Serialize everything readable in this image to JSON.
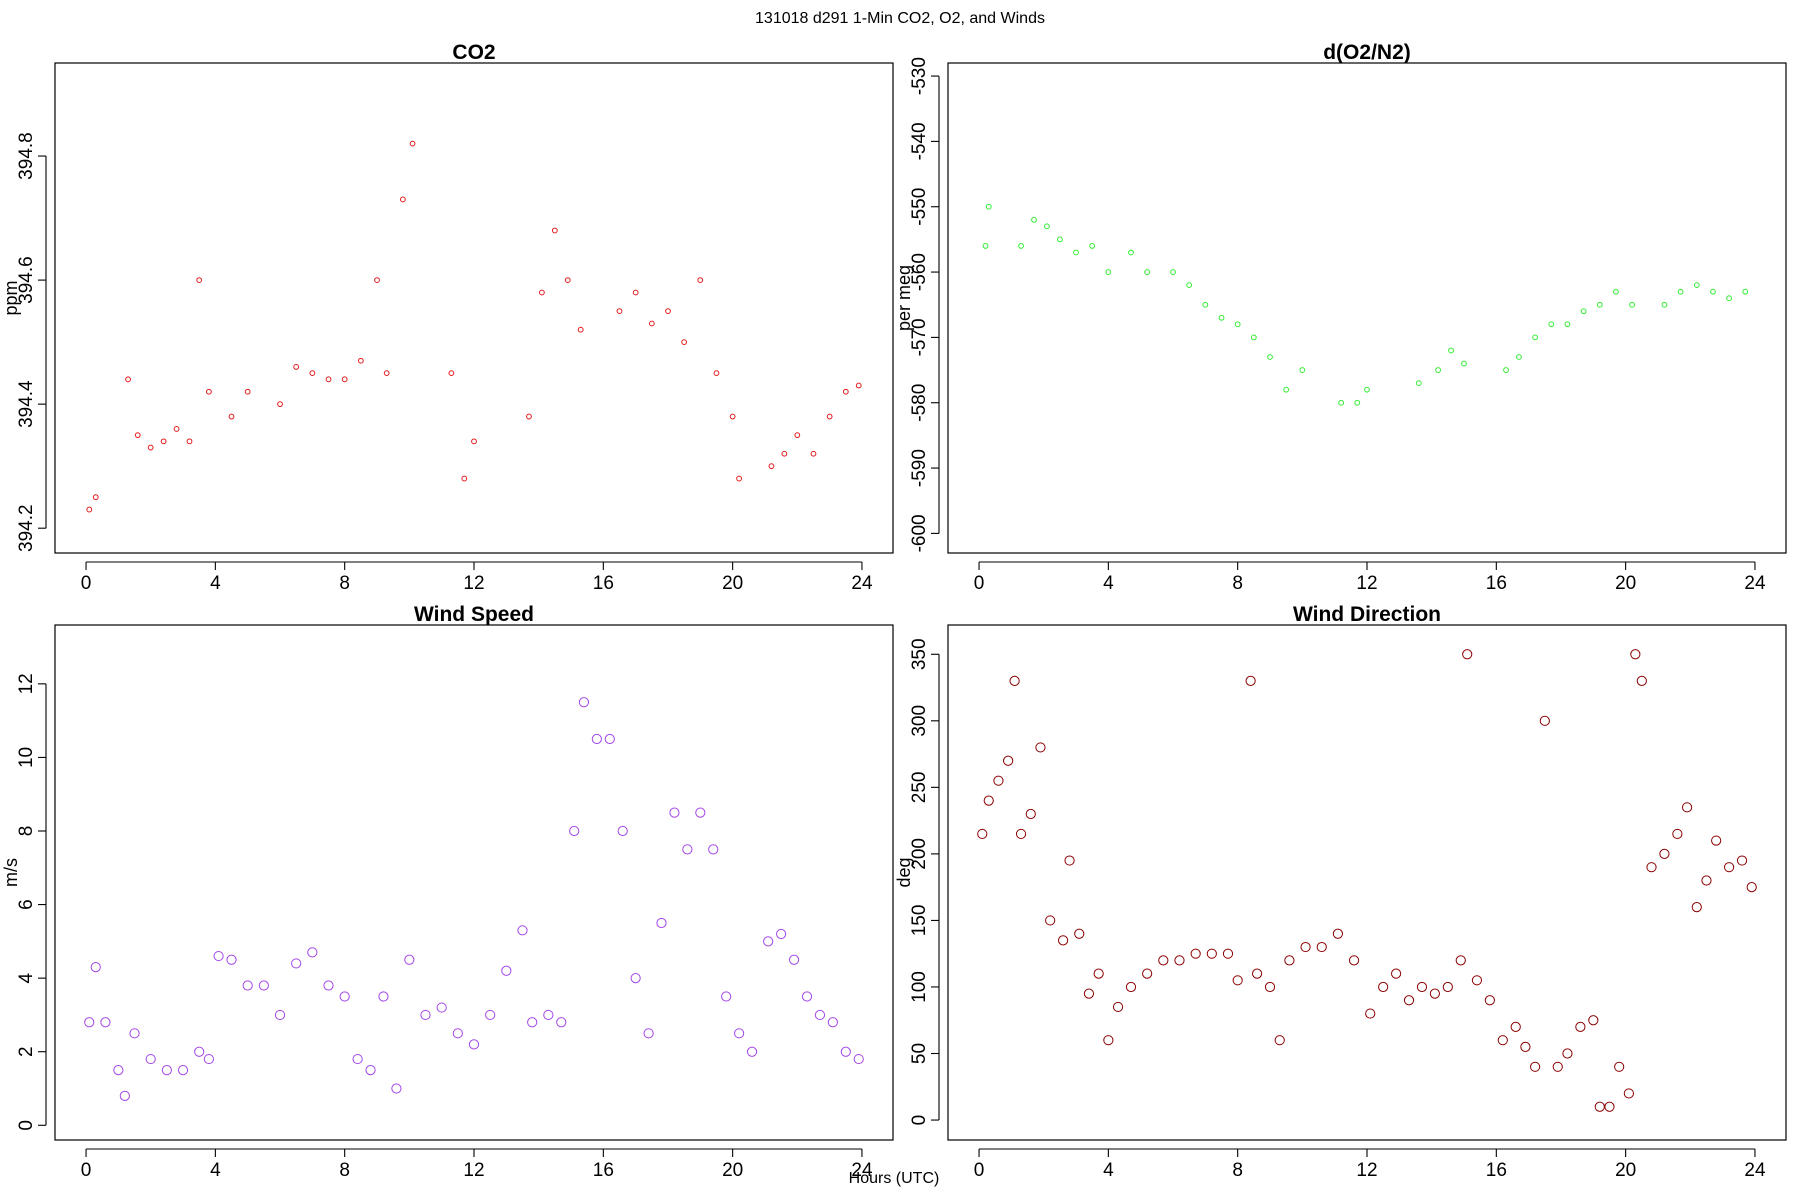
{
  "figure": {
    "title": "131018   d291   1-Min CO2, O2, and Winds",
    "xlabel": "Hours (UTC)"
  },
  "chart_data": [
    {
      "type": "scatter",
      "title": "CO2",
      "ylabel": "ppm",
      "xlim": [
        -0.96,
        24.96
      ],
      "ylim": [
        394.16,
        394.95
      ],
      "xticks": [
        0,
        4,
        8,
        12,
        16,
        20,
        24
      ],
      "yticks": [
        394.2,
        394.4,
        394.6,
        394.8
      ],
      "color": "#e41a1c",
      "points": [
        [
          0.1,
          394.23
        ],
        [
          0.3,
          394.25
        ],
        [
          1.3,
          394.44
        ],
        [
          1.6,
          394.35
        ],
        [
          2.0,
          394.33
        ],
        [
          2.4,
          394.34
        ],
        [
          2.8,
          394.36
        ],
        [
          3.2,
          394.34
        ],
        [
          3.5,
          394.6
        ],
        [
          3.8,
          394.42
        ],
        [
          4.5,
          394.38
        ],
        [
          5.0,
          394.42
        ],
        [
          6.0,
          394.4
        ],
        [
          6.5,
          394.46
        ],
        [
          7.0,
          394.45
        ],
        [
          7.5,
          394.44
        ],
        [
          8.0,
          394.44
        ],
        [
          8.5,
          394.47
        ],
        [
          9.0,
          394.6
        ],
        [
          9.3,
          394.45
        ],
        [
          9.8,
          394.73
        ],
        [
          10.1,
          394.82
        ],
        [
          11.3,
          394.45
        ],
        [
          11.7,
          394.28
        ],
        [
          12.0,
          394.34
        ],
        [
          13.7,
          394.38
        ],
        [
          14.1,
          394.58
        ],
        [
          14.5,
          394.68
        ],
        [
          14.9,
          394.6
        ],
        [
          15.3,
          394.52
        ],
        [
          16.5,
          394.55
        ],
        [
          17.0,
          394.58
        ],
        [
          17.5,
          394.53
        ],
        [
          18.0,
          394.55
        ],
        [
          18.5,
          394.5
        ],
        [
          19.0,
          394.6
        ],
        [
          19.5,
          394.45
        ],
        [
          20.0,
          394.38
        ],
        [
          20.2,
          394.28
        ],
        [
          21.2,
          394.3
        ],
        [
          21.6,
          394.32
        ],
        [
          22.0,
          394.35
        ],
        [
          22.5,
          394.32
        ],
        [
          23.0,
          394.38
        ],
        [
          23.5,
          394.42
        ],
        [
          23.9,
          394.43
        ]
      ]
    },
    {
      "type": "scatter",
      "title": "d(O2/N2)",
      "ylabel": "per meg",
      "xlim": [
        -0.96,
        24.96
      ],
      "ylim": [
        -603,
        -528
      ],
      "xticks": [
        0,
        4,
        8,
        12,
        16,
        20,
        24
      ],
      "yticks": [
        -530,
        -540,
        -550,
        -560,
        -570,
        -580,
        -590,
        -600
      ],
      "color": "#33ee33",
      "points": [
        [
          0.2,
          -556
        ],
        [
          0.3,
          -550
        ],
        [
          1.3,
          -556
        ],
        [
          1.7,
          -552
        ],
        [
          2.1,
          -553
        ],
        [
          2.5,
          -555
        ],
        [
          3.0,
          -557
        ],
        [
          3.5,
          -556
        ],
        [
          4.0,
          -560
        ],
        [
          4.7,
          -557
        ],
        [
          5.2,
          -560
        ],
        [
          6.0,
          -560
        ],
        [
          6.5,
          -562
        ],
        [
          7.0,
          -565
        ],
        [
          7.5,
          -567
        ],
        [
          8.0,
          -568
        ],
        [
          8.5,
          -570
        ],
        [
          9.0,
          -573
        ],
        [
          9.5,
          -578
        ],
        [
          10.0,
          -575
        ],
        [
          11.2,
          -580
        ],
        [
          11.7,
          -580
        ],
        [
          12.0,
          -578
        ],
        [
          13.6,
          -577
        ],
        [
          14.2,
          -575
        ],
        [
          14.6,
          -572
        ],
        [
          15.0,
          -574
        ],
        [
          16.3,
          -575
        ],
        [
          16.7,
          -573
        ],
        [
          17.2,
          -570
        ],
        [
          17.7,
          -568
        ],
        [
          18.2,
          -568
        ],
        [
          18.7,
          -566
        ],
        [
          19.2,
          -565
        ],
        [
          19.7,
          -563
        ],
        [
          20.2,
          -565
        ],
        [
          21.2,
          -565
        ],
        [
          21.7,
          -563
        ],
        [
          22.2,
          -562
        ],
        [
          22.7,
          -563
        ],
        [
          23.2,
          -564
        ],
        [
          23.7,
          -563
        ]
      ]
    },
    {
      "type": "scatter",
      "title": "Wind Speed",
      "ylabel": "m/s",
      "xlim": [
        -0.96,
        24.96
      ],
      "ylim": [
        -0.4,
        13.6
      ],
      "xticks": [
        0,
        4,
        8,
        12,
        16,
        20,
        24
      ],
      "yticks": [
        0,
        2,
        4,
        6,
        8,
        10,
        12
      ],
      "color": "#a347e8",
      "points": [
        [
          0.1,
          2.8
        ],
        [
          0.3,
          4.3
        ],
        [
          0.6,
          2.8
        ],
        [
          1.0,
          1.5
        ],
        [
          1.2,
          0.8
        ],
        [
          1.5,
          2.5
        ],
        [
          2.0,
          1.8
        ],
        [
          2.5,
          1.5
        ],
        [
          3.0,
          1.5
        ],
        [
          3.5,
          2.0
        ],
        [
          3.8,
          1.8
        ],
        [
          4.1,
          4.6
        ],
        [
          4.5,
          4.5
        ],
        [
          5.0,
          3.8
        ],
        [
          5.5,
          3.8
        ],
        [
          6.0,
          3.0
        ],
        [
          6.5,
          4.4
        ],
        [
          7.0,
          4.7
        ],
        [
          7.5,
          3.8
        ],
        [
          8.0,
          3.5
        ],
        [
          8.4,
          1.8
        ],
        [
          8.8,
          1.5
        ],
        [
          9.2,
          3.5
        ],
        [
          9.6,
          1.0
        ],
        [
          10.0,
          4.5
        ],
        [
          10.5,
          3.0
        ],
        [
          11.0,
          3.2
        ],
        [
          11.5,
          2.5
        ],
        [
          12.0,
          2.2
        ],
        [
          12.5,
          3.0
        ],
        [
          13.0,
          4.2
        ],
        [
          13.5,
          5.3
        ],
        [
          13.8,
          2.8
        ],
        [
          14.3,
          3.0
        ],
        [
          14.7,
          2.8
        ],
        [
          15.1,
          8.0
        ],
        [
          15.4,
          11.5
        ],
        [
          15.8,
          10.5
        ],
        [
          16.2,
          10.5
        ],
        [
          16.6,
          8.0
        ],
        [
          17.0,
          4.0
        ],
        [
          17.4,
          2.5
        ],
        [
          17.8,
          5.5
        ],
        [
          18.2,
          8.5
        ],
        [
          18.6,
          7.5
        ],
        [
          19.0,
          8.5
        ],
        [
          19.4,
          7.5
        ],
        [
          19.8,
          3.5
        ],
        [
          20.2,
          2.5
        ],
        [
          20.6,
          2.0
        ],
        [
          21.1,
          5.0
        ],
        [
          21.5,
          5.2
        ],
        [
          21.9,
          4.5
        ],
        [
          22.3,
          3.5
        ],
        [
          22.7,
          3.0
        ],
        [
          23.1,
          2.8
        ],
        [
          23.5,
          2.0
        ],
        [
          23.9,
          1.8
        ]
      ]
    },
    {
      "type": "scatter",
      "title": "Wind Direction",
      "ylabel": "deg",
      "xlim": [
        -0.96,
        24.96
      ],
      "ylim": [
        -15,
        372
      ],
      "xticks": [
        0,
        4,
        8,
        12,
        16,
        20,
        24
      ],
      "yticks": [
        0,
        50,
        100,
        150,
        200,
        250,
        300,
        350
      ],
      "color": "#8b0000",
      "points": [
        [
          0.1,
          215
        ],
        [
          0.3,
          240
        ],
        [
          0.6,
          255
        ],
        [
          0.9,
          270
        ],
        [
          1.1,
          330
        ],
        [
          1.3,
          215
        ],
        [
          1.6,
          230
        ],
        [
          1.9,
          280
        ],
        [
          2.2,
          150
        ],
        [
          2.6,
          135
        ],
        [
          2.8,
          195
        ],
        [
          3.1,
          140
        ],
        [
          3.4,
          95
        ],
        [
          3.7,
          110
        ],
        [
          4.0,
          60
        ],
        [
          4.3,
          85
        ],
        [
          4.7,
          100
        ],
        [
          5.2,
          110
        ],
        [
          5.7,
          120
        ],
        [
          6.2,
          120
        ],
        [
          6.7,
          125
        ],
        [
          7.2,
          125
        ],
        [
          7.7,
          125
        ],
        [
          8.0,
          105
        ],
        [
          8.4,
          330
        ],
        [
          8.6,
          110
        ],
        [
          9.0,
          100
        ],
        [
          9.3,
          60
        ],
        [
          9.6,
          120
        ],
        [
          10.1,
          130
        ],
        [
          10.6,
          130
        ],
        [
          11.1,
          140
        ],
        [
          11.6,
          120
        ],
        [
          12.1,
          80
        ],
        [
          12.5,
          100
        ],
        [
          12.9,
          110
        ],
        [
          13.3,
          90
        ],
        [
          13.7,
          100
        ],
        [
          14.1,
          95
        ],
        [
          14.5,
          100
        ],
        [
          14.9,
          120
        ],
        [
          15.1,
          350
        ],
        [
          15.4,
          105
        ],
        [
          15.8,
          90
        ],
        [
          16.2,
          60
        ],
        [
          16.6,
          70
        ],
        [
          16.9,
          55
        ],
        [
          17.2,
          40
        ],
        [
          17.5,
          300
        ],
        [
          17.9,
          40
        ],
        [
          18.2,
          50
        ],
        [
          18.6,
          70
        ],
        [
          19.0,
          75
        ],
        [
          19.2,
          10
        ],
        [
          19.5,
          10
        ],
        [
          19.8,
          40
        ],
        [
          20.1,
          20
        ],
        [
          20.3,
          350
        ],
        [
          20.5,
          330
        ],
        [
          20.8,
          190
        ],
        [
          21.2,
          200
        ],
        [
          21.6,
          215
        ],
        [
          21.9,
          235
        ],
        [
          22.2,
          160
        ],
        [
          22.5,
          180
        ],
        [
          22.8,
          210
        ],
        [
          23.2,
          190
        ],
        [
          23.6,
          195
        ],
        [
          23.9,
          175
        ]
      ]
    }
  ]
}
